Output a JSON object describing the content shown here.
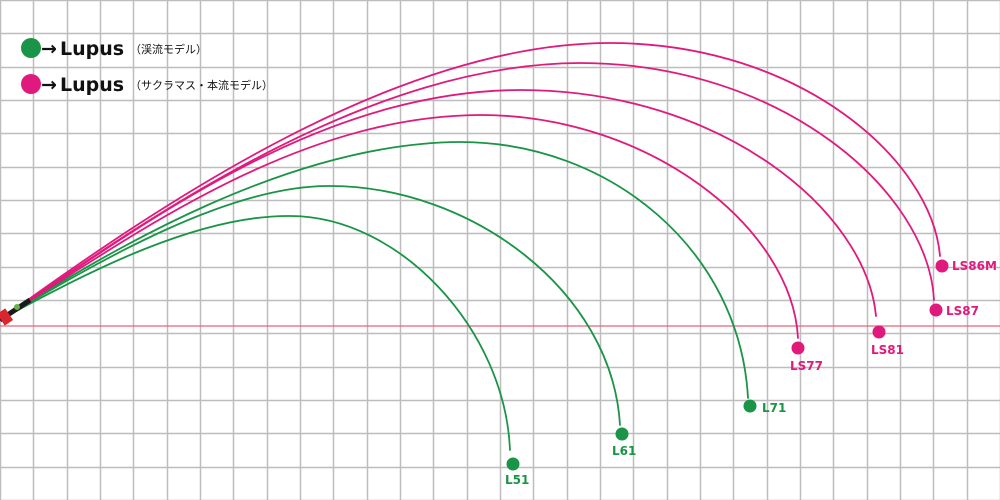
{
  "legend": {
    "items": [
      {
        "symbol": "●",
        "arrow": "→",
        "name": "Lupus",
        "note": "（渓流モデル）",
        "color": "#1a9446"
      },
      {
        "symbol": "●",
        "arrow": "→",
        "name": "Lupus",
        "note": "（サクラマス・本流モデル）",
        "color": "#e0197d"
      }
    ]
  },
  "colors": {
    "green": "#1a9446",
    "pink": "#e0197d",
    "grid": "#bdbdbd",
    "baseline": "#e8647a"
  },
  "rods": [
    {
      "label": "L51",
      "group": "green"
    },
    {
      "label": "L61",
      "group": "green"
    },
    {
      "label": "L71",
      "group": "green"
    },
    {
      "label": "LS77",
      "group": "pink"
    },
    {
      "label": "LS81",
      "group": "pink"
    },
    {
      "label": "LS87",
      "group": "pink"
    },
    {
      "label": "LS86M",
      "group": "pink"
    }
  ]
}
